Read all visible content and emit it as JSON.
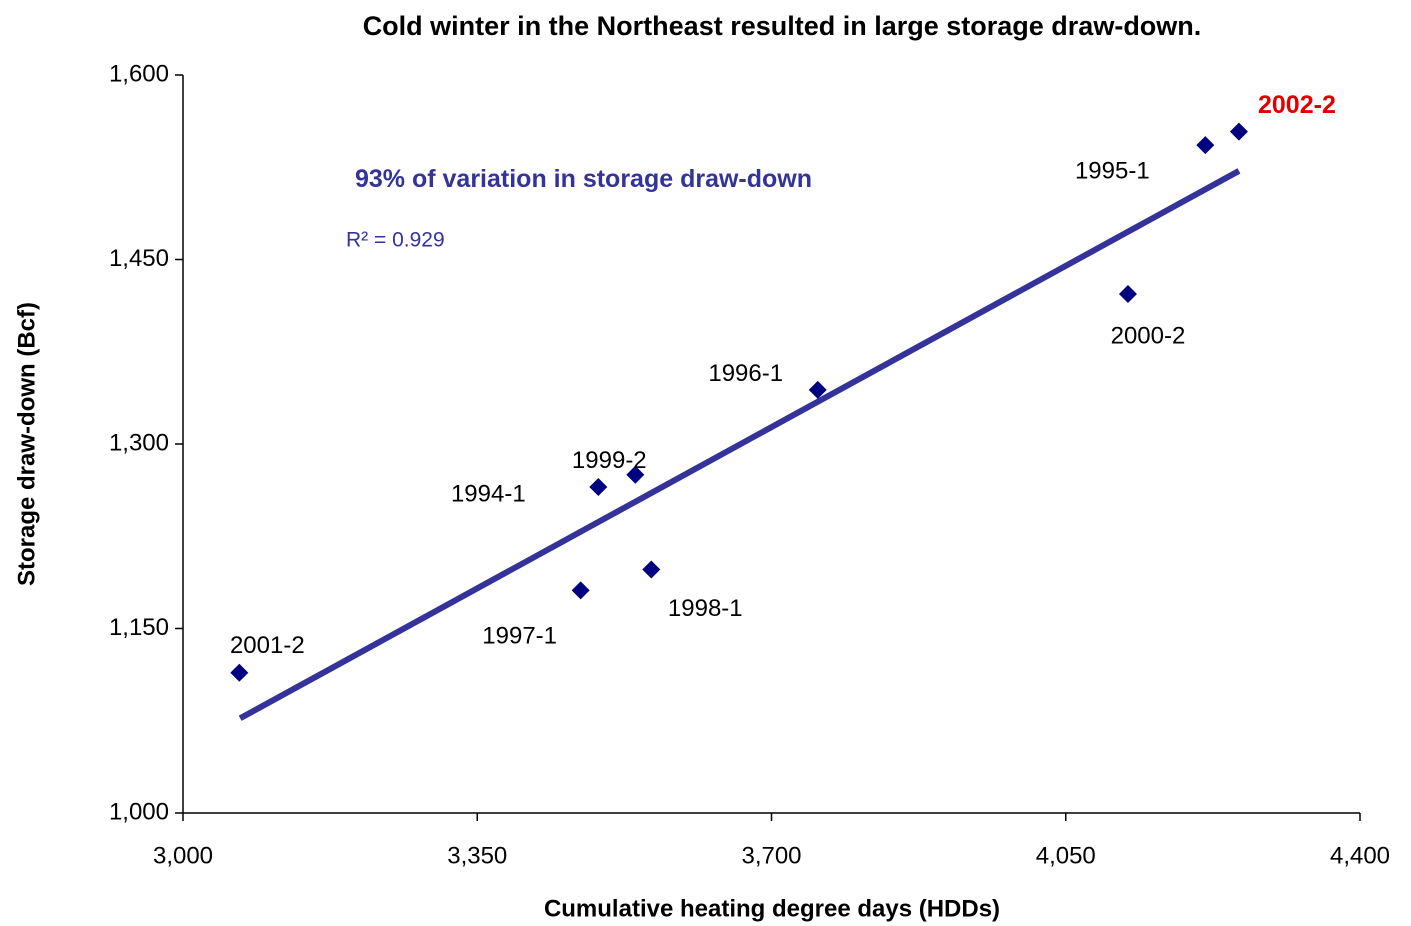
{
  "chart_data": {
    "type": "scatter",
    "title": "Cold winter in the Northeast resulted in large storage draw-down.",
    "x_label": "Cumulative heating degree days (HDDs)",
    "y_label": "Storage draw-down (Bcf)",
    "series": [
      {
        "color": "#000080",
        "labels": [
          "2001-2",
          "1997-1",
          "1994-1",
          "1999-2",
          "1998-1",
          "1996-1",
          "2000-2",
          "1995-1",
          "2002-2"
        ],
        "x": [
          3067,
          3473,
          3494,
          3538,
          3557,
          3755,
          4124,
          4216,
          4256
        ],
        "values": [
          1114,
          1181,
          1265,
          1275,
          1198,
          1344,
          1422,
          1543,
          1554
        ]
      }
    ],
    "highlight": {
      "index": 8,
      "color": "#e00000"
    },
    "trendline": {
      "x": [
        3068,
        4256
      ],
      "y": [
        1077,
        1522
      ],
      "color": "#333399",
      "label": "R² = 0.929"
    },
    "annotation": "93% of variation in storage draw-down",
    "xlim": [
      3000,
      4400
    ],
    "xticks": [
      {
        "value": 3000,
        "label": "3,000"
      },
      {
        "value": 3350,
        "label": "3,350"
      },
      {
        "value": 3700,
        "label": "3,700"
      },
      {
        "value": 4050,
        "label": "4,050"
      },
      {
        "value": 4400,
        "label": "4,400"
      }
    ],
    "ylim": [
      1000,
      1600
    ],
    "yticks": [
      {
        "value": 1000,
        "label": "1,000"
      },
      {
        "value": 1150,
        "label": "1,150"
      },
      {
        "value": 1300,
        "label": "1,300"
      },
      {
        "value": 1450,
        "label": "1,450"
      },
      {
        "value": 1600,
        "label": "1,600"
      }
    ],
    "grid": false
  }
}
